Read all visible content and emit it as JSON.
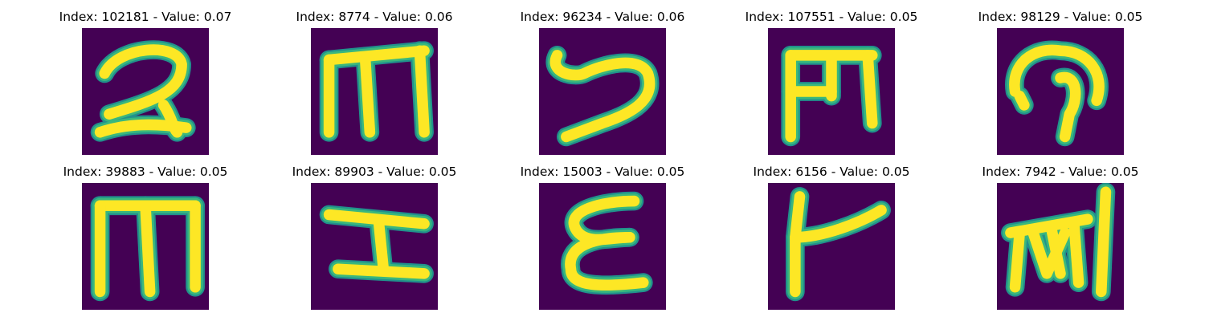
{
  "colors": {
    "background": "#440154",
    "stroke": "#fde725",
    "edge": "#3ab77d",
    "mid": "#21918c"
  },
  "panels": [
    {
      "title": "Index: 102181 - Value: 0.07",
      "glyph": "two"
    },
    {
      "title": "Index: 8774 - Value: 0.06",
      "glyph": "m-flat"
    },
    {
      "title": "Index: 96234 - Value: 0.06",
      "glyph": "swirl"
    },
    {
      "title": "Index: 107551 - Value: 0.05",
      "glyph": "m-box"
    },
    {
      "title": "Index: 98129 - Value: 0.05",
      "glyph": "hook"
    },
    {
      "title": "Index: 39883 - Value: 0.05",
      "glyph": "m-tall"
    },
    {
      "title": "Index: 89903 - Value: 0.05",
      "glyph": "i-beam"
    },
    {
      "title": "Index: 15003 - Value: 0.05",
      "glyph": "epsilon"
    },
    {
      "title": "Index: 6156 - Value: 0.05",
      "glyph": "t-curve"
    },
    {
      "title": "Index: 7942 - Value: 0.05",
      "glyph": "scribble"
    }
  ]
}
